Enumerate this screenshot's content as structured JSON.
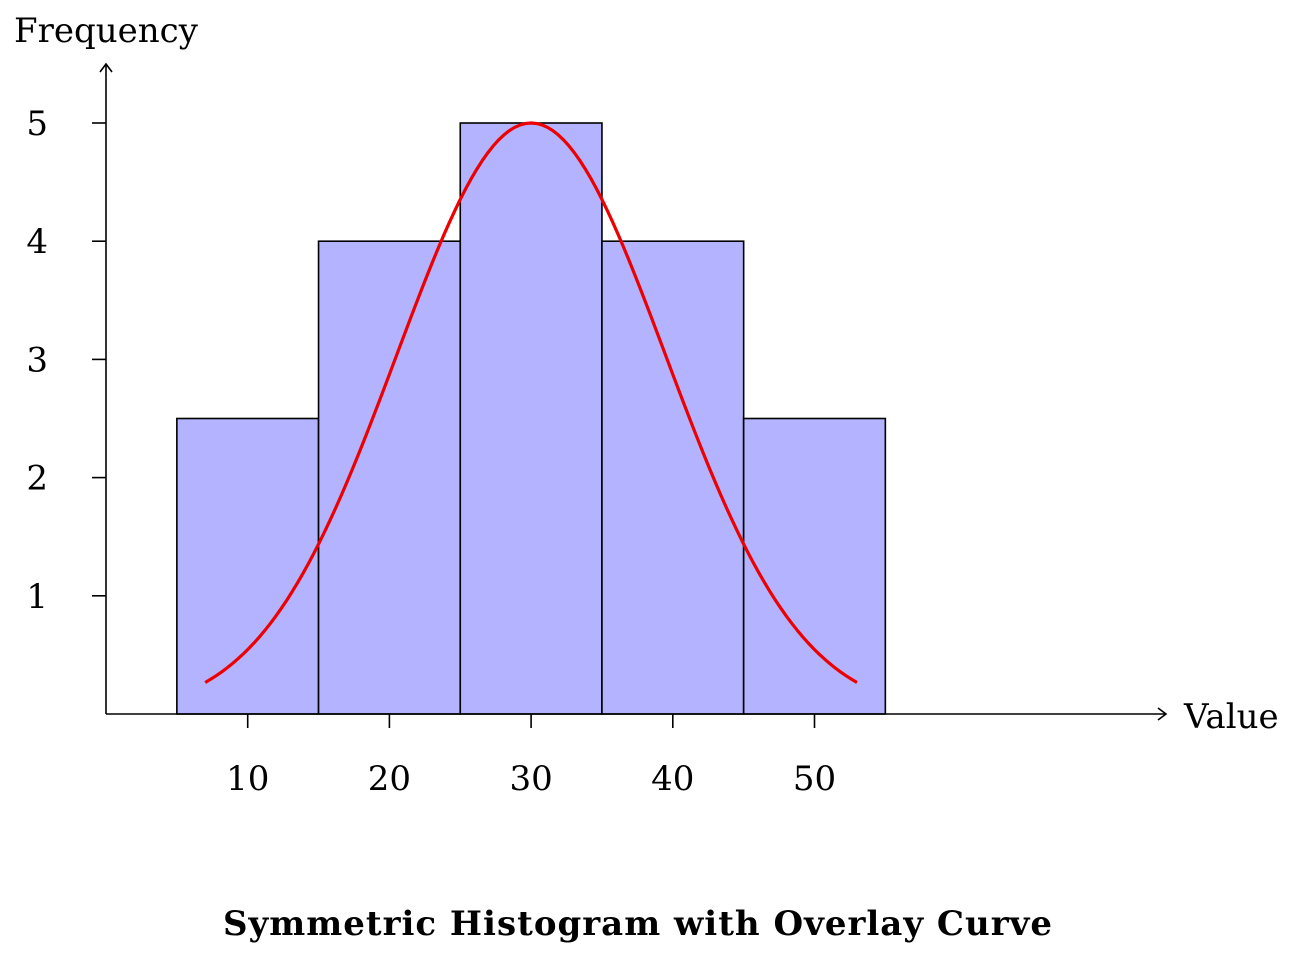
{
  "chart_data": {
    "type": "bar",
    "subtype": "histogram",
    "title": "Symmetric Histogram with Overlay Curve",
    "xlabel": "Value",
    "ylabel": "Frequency",
    "x_ticks": [
      10,
      20,
      30,
      40,
      50
    ],
    "y_ticks": [
      1,
      2,
      3,
      4,
      5
    ],
    "bins": [
      {
        "from": 5,
        "to": 15,
        "value": 2.5
      },
      {
        "from": 15,
        "to": 25,
        "value": 4
      },
      {
        "from": 25,
        "to": 35,
        "value": 5
      },
      {
        "from": 35,
        "to": 45,
        "value": 4
      },
      {
        "from": 45,
        "to": 55,
        "value": 2.5
      }
    ],
    "curve": {
      "kind": "gaussian",
      "peak": 5,
      "mean": 30,
      "sd": 9.5,
      "x_range": [
        7,
        53
      ],
      "color": "#ee0000"
    },
    "bar_fill": "#b3b3ff",
    "bar_stroke": "#000000",
    "xlim": [
      0,
      75
    ],
    "ylim": [
      0,
      5.5
    ],
    "grid": false,
    "legend": "none"
  }
}
